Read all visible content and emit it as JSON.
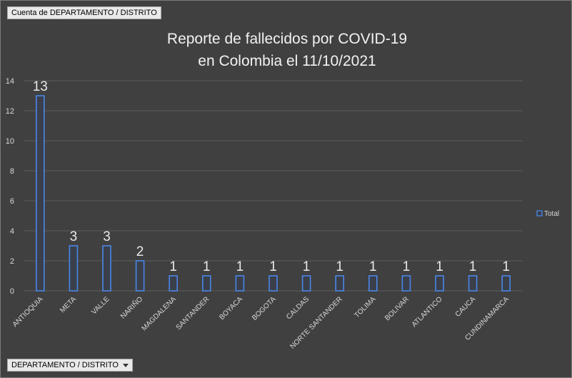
{
  "pivot": {
    "value_field": "Cuenta de DEPARTAMENTO / DISTRITO",
    "axis_field": "DEPARTAMENTO / DISTRITO"
  },
  "colors": {
    "background": "#404040",
    "bar_stroke": "#4a86e8",
    "bar_fill": "#3a3f4a",
    "gridline": "#5c5c5c"
  },
  "chart_data": {
    "type": "bar",
    "title": [
      "Reporte de fallecidos por COVID-19",
      "en Colombia el 11/10/2021"
    ],
    "categories": [
      "ANTIOQUIA",
      "META",
      "VALLE",
      "NARIÑO",
      "MAGDALENA",
      "SANTANDER",
      "BOYACA",
      "BOGOTA",
      "CALDAS",
      "NORTE SANTANDER",
      "TOLIMA",
      "BOLIVAR",
      "ATLANTICO",
      "CAUCA",
      "CUNDINAMARCA"
    ],
    "series": [
      {
        "name": "Total",
        "values": [
          13,
          3,
          3,
          2,
          1,
          1,
          1,
          1,
          1,
          1,
          1,
          1,
          1,
          1,
          1
        ]
      }
    ],
    "ylim": [
      0,
      14
    ],
    "yticks": [
      0,
      2,
      4,
      6,
      8,
      10,
      12,
      14
    ],
    "grid": true,
    "data_labels": true,
    "legend": "right"
  }
}
